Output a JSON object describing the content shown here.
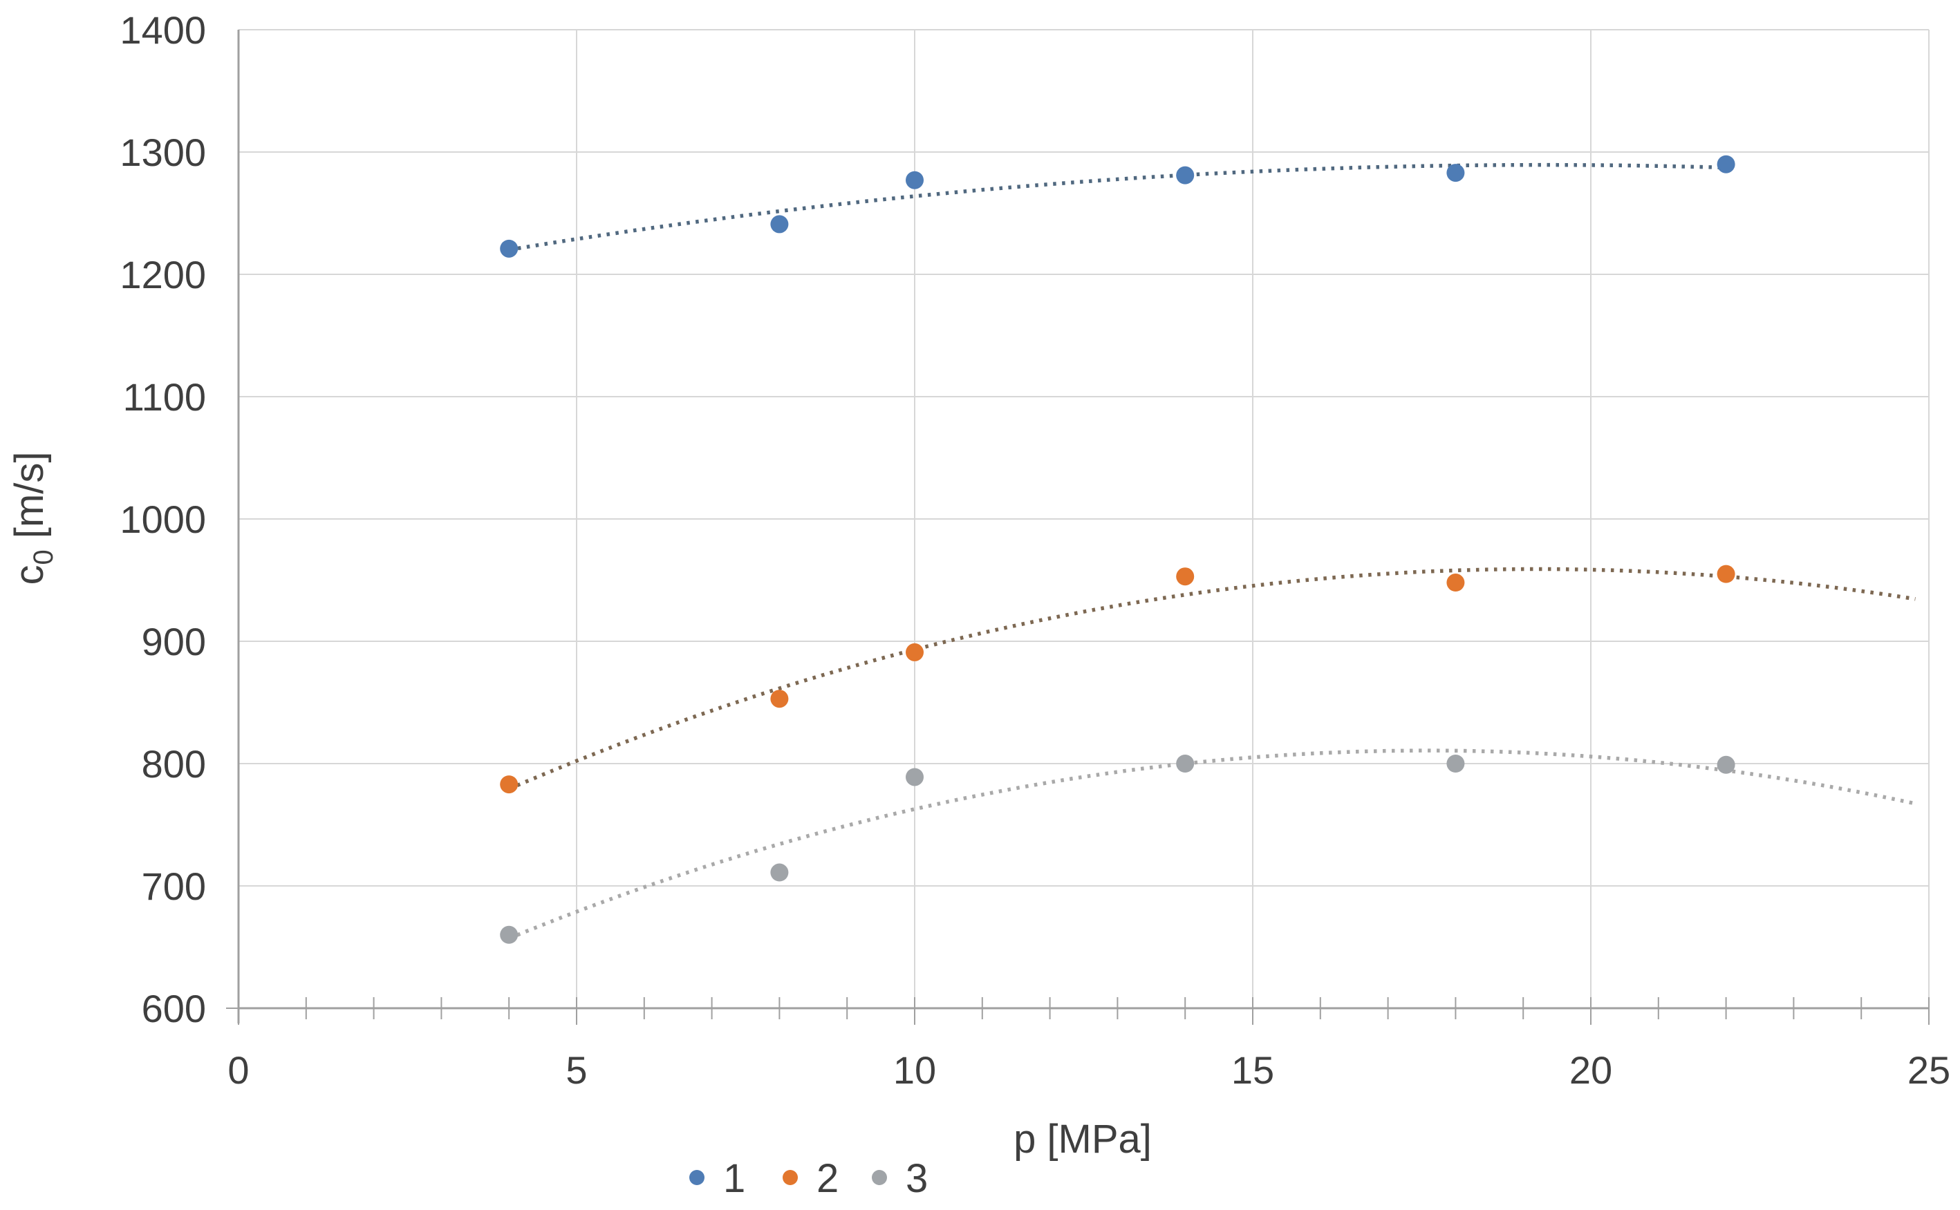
{
  "chart_data": {
    "type": "scatter",
    "title": "",
    "xlabel": "p [MPa]",
    "ylabel": "c0 [m/s]",
    "ylabel_parts": {
      "base": "c",
      "sub": "0",
      "rest": " [m/s]"
    },
    "xlim": [
      0,
      25
    ],
    "ylim": [
      600,
      1400
    ],
    "x_major_tick_step": 5,
    "x_minor_tick_step": 1,
    "y_tick_step": 100,
    "x_tick_labels": [
      "0",
      "5",
      "10",
      "15",
      "20",
      "25"
    ],
    "x_tick_values": [
      0,
      5,
      10,
      15,
      20,
      25
    ],
    "y_tick_labels": [
      "600",
      "700",
      "800",
      "900",
      "1000",
      "1100",
      "1200",
      "1300",
      "1400"
    ],
    "y_tick_values": [
      600,
      700,
      800,
      900,
      1000,
      1100,
      1200,
      1300,
      1400
    ],
    "grid": true,
    "legend_position": "bottom",
    "series": [
      {
        "name": "1",
        "marker": "circle",
        "color": "#4e7cb5",
        "trend_color": "#50687f",
        "points": [
          [
            4,
            1221
          ],
          [
            8,
            1241
          ],
          [
            10,
            1277
          ],
          [
            14,
            1281
          ],
          [
            18,
            1283
          ],
          [
            22,
            1290
          ]
        ],
        "trend": {
          "type": "polynomial",
          "order": 2,
          "x_start": 4,
          "x_end": 22
        }
      },
      {
        "name": "2",
        "marker": "circle",
        "color": "#e2762d",
        "trend_color": "#7d6852",
        "points": [
          [
            4,
            783
          ],
          [
            8,
            853
          ],
          [
            10,
            891
          ],
          [
            14,
            953
          ],
          [
            18,
            948
          ],
          [
            22,
            955
          ]
        ],
        "trend": {
          "type": "polynomial",
          "order": 2,
          "x_start": 4,
          "x_end": 24.8
        }
      },
      {
        "name": "3",
        "marker": "circle",
        "color": "#a0a4a8",
        "trend_color": "#a9a9a9",
        "points": [
          [
            4,
            660
          ],
          [
            8,
            711
          ],
          [
            10,
            789
          ],
          [
            14,
            800
          ],
          [
            18,
            800
          ],
          [
            22,
            799
          ]
        ],
        "trend": {
          "type": "polynomial",
          "order": 2,
          "x_start": 4,
          "x_end": 24.8
        }
      }
    ],
    "legend_items": [
      {
        "label": "1",
        "color": "#4e7cb5"
      },
      {
        "label": "2",
        "color": "#e2762d"
      },
      {
        "label": "3",
        "color": "#a0a4a8"
      }
    ],
    "colors": {
      "gridline": "#d7d7d7",
      "axis_line": "#a0a0a0",
      "text": "#3f3f3f",
      "background": "#ffffff"
    }
  }
}
